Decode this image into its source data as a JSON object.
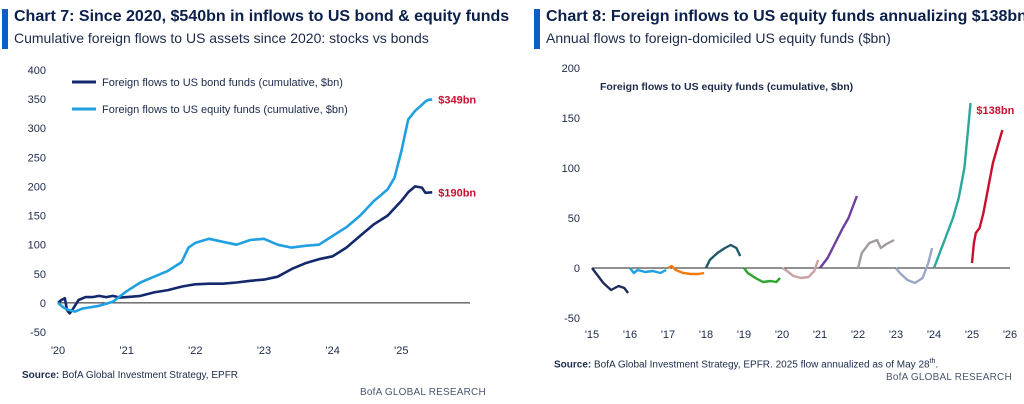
{
  "chart_data": [
    {
      "type": "line",
      "title": "Chart 7: Since 2020, $540bn in inflows to US bond & equity funds",
      "subtitle": "Cumulative foreign flows to US assets since 2020: stocks vs bonds",
      "x_ticks": [
        "'20",
        "'21",
        "'22",
        "'23",
        "'24",
        "'25"
      ],
      "x_range": [
        2020.0,
        2026.0
      ],
      "y_ticks": [
        "400",
        "350",
        "300",
        "250",
        "200",
        "150",
        "100",
        "50",
        "0",
        "-50"
      ],
      "ylim": [
        -50,
        400
      ],
      "grid": false,
      "legend_position": "top-left",
      "series": [
        {
          "name": "Foreign flows to US bond funds (cumulative, $bn)",
          "color": "#13296b",
          "end_label": "$190bn",
          "points": [
            [
              2020.0,
              0
            ],
            [
              2020.05,
              5
            ],
            [
              2020.1,
              8
            ],
            [
              2020.13,
              -12
            ],
            [
              2020.17,
              -18
            ],
            [
              2020.22,
              -10
            ],
            [
              2020.3,
              5
            ],
            [
              2020.4,
              10
            ],
            [
              2020.5,
              10
            ],
            [
              2020.6,
              12
            ],
            [
              2020.7,
              10
            ],
            [
              2020.8,
              12
            ],
            [
              2020.9,
              9
            ],
            [
              2021.0,
              10
            ],
            [
              2021.2,
              12
            ],
            [
              2021.4,
              18
            ],
            [
              2021.6,
              22
            ],
            [
              2021.8,
              28
            ],
            [
              2021.9,
              30
            ],
            [
              2022.0,
              32
            ],
            [
              2022.2,
              33
            ],
            [
              2022.4,
              33
            ],
            [
              2022.6,
              35
            ],
            [
              2022.8,
              38
            ],
            [
              2023.0,
              40
            ],
            [
              2023.2,
              45
            ],
            [
              2023.4,
              58
            ],
            [
              2023.6,
              68
            ],
            [
              2023.8,
              75
            ],
            [
              2024.0,
              80
            ],
            [
              2024.2,
              95
            ],
            [
              2024.4,
              115
            ],
            [
              2024.6,
              135
            ],
            [
              2024.8,
              150
            ],
            [
              2025.0,
              175
            ],
            [
              2025.1,
              190
            ],
            [
              2025.2,
              200
            ],
            [
              2025.3,
              198
            ],
            [
              2025.35,
              189
            ],
            [
              2025.45,
              190
            ]
          ]
        },
        {
          "name": "Foreign flows to US equity funds (cumulative, $bn)",
          "color": "#1fa0e0",
          "end_label": "$349bn",
          "points": [
            [
              2020.0,
              0
            ],
            [
              2020.08,
              -8
            ],
            [
              2020.15,
              -12
            ],
            [
              2020.25,
              -15
            ],
            [
              2020.35,
              -10
            ],
            [
              2020.45,
              -8
            ],
            [
              2020.6,
              -5
            ],
            [
              2020.8,
              2
            ],
            [
              2021.0,
              20
            ],
            [
              2021.2,
              35
            ],
            [
              2021.4,
              45
            ],
            [
              2021.6,
              55
            ],
            [
              2021.8,
              70
            ],
            [
              2021.9,
              95
            ],
            [
              2022.0,
              103
            ],
            [
              2022.2,
              110
            ],
            [
              2022.4,
              105
            ],
            [
              2022.6,
              100
            ],
            [
              2022.8,
              108
            ],
            [
              2023.0,
              110
            ],
            [
              2023.2,
              100
            ],
            [
              2023.4,
              95
            ],
            [
              2023.6,
              98
            ],
            [
              2023.8,
              100
            ],
            [
              2024.0,
              115
            ],
            [
              2024.2,
              130
            ],
            [
              2024.4,
              150
            ],
            [
              2024.6,
              175
            ],
            [
              2024.8,
              195
            ],
            [
              2024.9,
              215
            ],
            [
              2025.0,
              260
            ],
            [
              2025.1,
              315
            ],
            [
              2025.2,
              330
            ],
            [
              2025.3,
              340
            ],
            [
              2025.35,
              346
            ],
            [
              2025.4,
              349
            ],
            [
              2025.45,
              349
            ]
          ]
        }
      ]
    },
    {
      "type": "line",
      "title": "Chart 8: Foreign inflows to US equity funds annualizing $138bn",
      "subtitle": "Annual flows to foreign-domiciled US equity funds ($bn)",
      "inner_label": "Foreign flows to US equity funds (cumulative, $bn)",
      "x_ticks": [
        "'15",
        "'16",
        "'17",
        "'18",
        "'19",
        "'20",
        "'21",
        "'22",
        "'23",
        "'24",
        "'25",
        "'26"
      ],
      "x_range": [
        2015.0,
        2026.0
      ],
      "y_ticks": [
        "200",
        "150",
        "100",
        "50",
        "0",
        "-50"
      ],
      "ylim": [
        -50,
        200
      ],
      "grid": false,
      "end_label": "$138bn",
      "end_label_color": "#c8102e",
      "series": [
        {
          "year": "2015",
          "color": "#1f2d5c",
          "points": [
            [
              2015.0,
              0
            ],
            [
              2015.1,
              -5
            ],
            [
              2015.3,
              -15
            ],
            [
              2015.5,
              -22
            ],
            [
              2015.7,
              -18
            ],
            [
              2015.85,
              -20
            ],
            [
              2015.95,
              -25
            ]
          ]
        },
        {
          "year": "2016",
          "color": "#1fa0e0",
          "points": [
            [
              2016.0,
              0
            ],
            [
              2016.1,
              -5
            ],
            [
              2016.2,
              -2
            ],
            [
              2016.4,
              -4
            ],
            [
              2016.6,
              -3
            ],
            [
              2016.8,
              -5
            ],
            [
              2016.95,
              -2
            ]
          ]
        },
        {
          "year": "2017",
          "color": "#f07c10",
          "points": [
            [
              2017.0,
              0
            ],
            [
              2017.1,
              2
            ],
            [
              2017.2,
              -2
            ],
            [
              2017.4,
              -5
            ],
            [
              2017.6,
              -6
            ],
            [
              2017.8,
              -6
            ],
            [
              2017.95,
              -5
            ]
          ]
        },
        {
          "year": "2018",
          "color": "#1f5a6b",
          "points": [
            [
              2018.0,
              0
            ],
            [
              2018.1,
              8
            ],
            [
              2018.3,
              15
            ],
            [
              2018.5,
              20
            ],
            [
              2018.65,
              23
            ],
            [
              2018.8,
              20
            ],
            [
              2018.9,
              12
            ]
          ]
        },
        {
          "year": "2019",
          "color": "#2ea32e",
          "points": [
            [
              2019.0,
              0
            ],
            [
              2019.1,
              -5
            ],
            [
              2019.3,
              -10
            ],
            [
              2019.5,
              -14
            ],
            [
              2019.7,
              -13
            ],
            [
              2019.85,
              -14
            ],
            [
              2019.95,
              -10
            ]
          ]
        },
        {
          "year": "2020",
          "color": "#c9a3a3",
          "points": [
            [
              2020.0,
              0
            ],
            [
              2020.1,
              -2
            ],
            [
              2020.3,
              -8
            ],
            [
              2020.5,
              -10
            ],
            [
              2020.7,
              -9
            ],
            [
              2020.85,
              -3
            ],
            [
              2020.95,
              8
            ]
          ]
        },
        {
          "year": "2021",
          "color": "#6b3fa0",
          "points": [
            [
              2021.0,
              0
            ],
            [
              2021.2,
              10
            ],
            [
              2021.4,
              25
            ],
            [
              2021.6,
              40
            ],
            [
              2021.75,
              50
            ],
            [
              2021.9,
              65
            ],
            [
              2021.97,
              72
            ]
          ]
        },
        {
          "year": "2022",
          "color": "#a39c9c",
          "points": [
            [
              2022.0,
              0
            ],
            [
              2022.1,
              15
            ],
            [
              2022.3,
              25
            ],
            [
              2022.5,
              28
            ],
            [
              2022.6,
              20
            ],
            [
              2022.75,
              24
            ],
            [
              2022.95,
              28
            ]
          ]
        },
        {
          "year": "2023",
          "color": "#9aa7c4",
          "points": [
            [
              2023.0,
              0
            ],
            [
              2023.1,
              -5
            ],
            [
              2023.3,
              -12
            ],
            [
              2023.5,
              -15
            ],
            [
              2023.7,
              -10
            ],
            [
              2023.85,
              5
            ],
            [
              2023.95,
              20
            ]
          ]
        },
        {
          "year": "2024",
          "color": "#2aa89a",
          "points": [
            [
              2024.0,
              0
            ],
            [
              2024.15,
              15
            ],
            [
              2024.3,
              30
            ],
            [
              2024.5,
              50
            ],
            [
              2024.65,
              70
            ],
            [
              2024.8,
              100
            ],
            [
              2024.9,
              140
            ],
            [
              2024.96,
              165
            ]
          ]
        },
        {
          "year": "2025",
          "color": "#c8102e",
          "points": [
            [
              2025.0,
              5
            ],
            [
              2025.05,
              25
            ],
            [
              2025.1,
              35
            ],
            [
              2025.2,
              40
            ],
            [
              2025.3,
              55
            ],
            [
              2025.4,
              75
            ],
            [
              2025.55,
              105
            ],
            [
              2025.7,
              125
            ],
            [
              2025.8,
              138
            ]
          ]
        }
      ]
    }
  ],
  "left": {
    "source_label": "Source:",
    "source_text": " BofA Global Investment Strategy, EPFR",
    "brand": "BofA GLOBAL RESEARCH"
  },
  "right": {
    "source_label": "Source:",
    "source_text": " BofA Global Investment Strategy, EPFR. 2025 flow annualized as of May 28",
    "source_sup": "th",
    "source_end": ".",
    "brand": "BofA GLOBAL RESEARCH"
  }
}
